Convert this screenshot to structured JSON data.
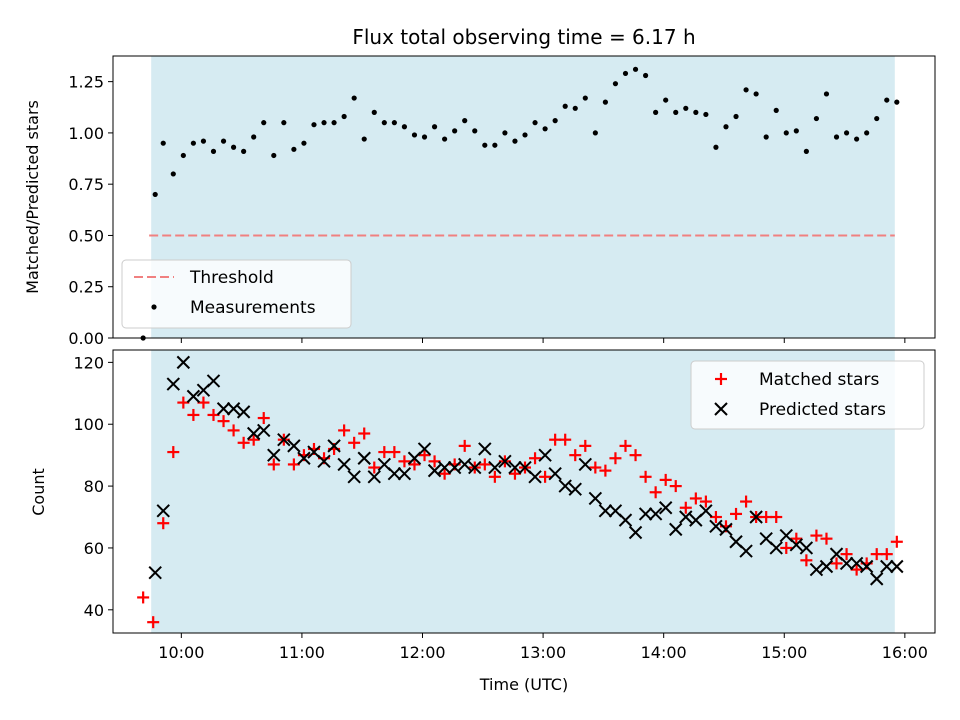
{
  "chart_data": [
    {
      "type": "scatter",
      "title": "Flux total observing time = 6.17 h",
      "xlabel": "",
      "ylabel": "Matched/Predicted stars",
      "xlim": [
        "09:26",
        "16:15"
      ],
      "ylim": [
        0,
        1.375
      ],
      "yticks": [
        0.0,
        0.25,
        0.5,
        0.75,
        1.0,
        1.25
      ],
      "ytick_labels": [
        "0.00",
        "0.25",
        "0.50",
        "0.75",
        "1.00",
        "1.25"
      ],
      "grid": false,
      "legend_position": "lower-left",
      "observing_window": [
        "09:45",
        "15:55"
      ],
      "threshold": {
        "label": "Threshold",
        "value": 0.5,
        "x_range": [
          "09:44",
          "15:55"
        ],
        "color": "#f08080"
      },
      "series": [
        {
          "name": "Measurements",
          "color": "#000000",
          "x": [
            "09:41",
            "09:47",
            "09:51",
            "09:56",
            "10:01",
            "10:06",
            "10:11",
            "10:16",
            "10:21",
            "10:26",
            "10:31",
            "10:36",
            "10:41",
            "10:46",
            "10:51",
            "10:56",
            "11:01",
            "11:06",
            "11:11",
            "11:16",
            "11:21",
            "11:26",
            "11:31",
            "11:36",
            "11:41",
            "11:46",
            "11:51",
            "11:56",
            "12:01",
            "12:06",
            "12:11",
            "12:16",
            "12:21",
            "12:26",
            "12:31",
            "12:36",
            "12:41",
            "12:46",
            "12:51",
            "12:56",
            "13:01",
            "13:06",
            "13:11",
            "13:16",
            "13:21",
            "13:26",
            "13:31",
            "13:36",
            "13:41",
            "13:46",
            "13:51",
            "13:56",
            "14:01",
            "14:06",
            "14:11",
            "14:16",
            "14:21",
            "14:26",
            "14:31",
            "14:36",
            "14:41",
            "14:46",
            "14:51",
            "14:56",
            "15:01",
            "15:06",
            "15:11",
            "15:16",
            "15:21",
            "15:26",
            "15:31",
            "15:36",
            "15:41",
            "15:46",
            "15:51",
            "15:56"
          ],
          "values": [
            0.0,
            0.7,
            0.95,
            0.8,
            0.89,
            0.95,
            0.96,
            0.91,
            0.96,
            0.93,
            0.91,
            0.98,
            1.05,
            0.89,
            1.05,
            0.92,
            0.95,
            1.04,
            1.05,
            1.05,
            1.08,
            1.17,
            0.97,
            1.1,
            1.05,
            1.05,
            1.03,
            0.99,
            0.98,
            1.03,
            0.97,
            1.01,
            1.06,
            1.01,
            0.94,
            0.94,
            1.0,
            0.96,
            0.99,
            1.05,
            1.02,
            1.06,
            1.13,
            1.12,
            1.17,
            1.0,
            1.15,
            1.24,
            1.29,
            1.31,
            1.28,
            1.1,
            1.16,
            1.1,
            1.12,
            1.1,
            1.09,
            0.93,
            1.03,
            1.08,
            1.21,
            1.19,
            0.98,
            1.11,
            1.0,
            1.01,
            0.91,
            1.07,
            1.19,
            0.98,
            1.0,
            0.97,
            1.0,
            1.07,
            1.16,
            1.15
          ]
        }
      ]
    },
    {
      "type": "scatter",
      "title": "",
      "xlabel": "Time (UTC)",
      "ylabel": "Count",
      "xlim": [
        "09:26",
        "16:15"
      ],
      "ylim": [
        32.5,
        124
      ],
      "yticks": [
        40,
        60,
        80,
        100,
        120
      ],
      "ytick_labels": [
        "40",
        "60",
        "80",
        "100",
        "120"
      ],
      "xticks": [
        "10:00",
        "11:00",
        "12:00",
        "13:00",
        "14:00",
        "15:00",
        "16:00"
      ],
      "grid": false,
      "legend_position": "top-right",
      "observing_window": [
        "09:45",
        "15:55"
      ],
      "series": [
        {
          "name": "Matched stars",
          "color": "#ff0000",
          "marker": "plus",
          "x": [
            "09:41",
            "09:46",
            "09:51",
            "09:56",
            "10:01",
            "10:06",
            "10:11",
            "10:16",
            "10:21",
            "10:26",
            "10:31",
            "10:36",
            "10:41",
            "10:46",
            "10:51",
            "10:56",
            "11:01",
            "11:06",
            "11:11",
            "11:16",
            "11:21",
            "11:26",
            "11:31",
            "11:36",
            "11:41",
            "11:46",
            "11:51",
            "11:56",
            "12:01",
            "12:06",
            "12:11",
            "12:16",
            "12:21",
            "12:26",
            "12:31",
            "12:36",
            "12:41",
            "12:46",
            "12:51",
            "12:56",
            "13:01",
            "13:06",
            "13:11",
            "13:16",
            "13:21",
            "13:26",
            "13:31",
            "13:36",
            "13:41",
            "13:46",
            "13:51",
            "13:56",
            "14:01",
            "14:06",
            "14:11",
            "14:16",
            "14:21",
            "14:26",
            "14:31",
            "14:36",
            "14:41",
            "14:46",
            "14:51",
            "14:56",
            "15:01",
            "15:06",
            "15:11",
            "15:16",
            "15:21",
            "15:26",
            "15:31",
            "15:36",
            "15:41",
            "15:46",
            "15:51",
            "15:56"
          ],
          "values": [
            44,
            36,
            68,
            91,
            107,
            103,
            107,
            103,
            101,
            98,
            94,
            95,
            102,
            87,
            95,
            87,
            90,
            92,
            89,
            92,
            98,
            94,
            97,
            86,
            91,
            91,
            88,
            87,
            90,
            88,
            84,
            87,
            93,
            86,
            87,
            83,
            88,
            84,
            86,
            89,
            83,
            95,
            95,
            90,
            93,
            86,
            85,
            89,
            93,
            90,
            83,
            78,
            82,
            80,
            73,
            76,
            75,
            70,
            67,
            71,
            75,
            70,
            70,
            70,
            60,
            63,
            56,
            64,
            63,
            55,
            58,
            53,
            55,
            58,
            58,
            62
          ]
        },
        {
          "name": "Predicted stars",
          "color": "#000000",
          "marker": "x",
          "x": [
            "09:47",
            "09:51",
            "09:56",
            "10:01",
            "10:06",
            "10:11",
            "10:16",
            "10:21",
            "10:26",
            "10:31",
            "10:36",
            "10:41",
            "10:46",
            "10:51",
            "10:56",
            "11:01",
            "11:06",
            "11:11",
            "11:16",
            "11:21",
            "11:26",
            "11:31",
            "11:36",
            "11:41",
            "11:46",
            "11:51",
            "11:56",
            "12:01",
            "12:06",
            "12:11",
            "12:16",
            "12:21",
            "12:26",
            "12:31",
            "12:36",
            "12:41",
            "12:46",
            "12:51",
            "12:56",
            "13:01",
            "13:06",
            "13:11",
            "13:16",
            "13:21",
            "13:26",
            "13:31",
            "13:36",
            "13:41",
            "13:46",
            "13:51",
            "13:56",
            "14:01",
            "14:06",
            "14:11",
            "14:16",
            "14:21",
            "14:26",
            "14:31",
            "14:36",
            "14:41",
            "14:46",
            "14:51",
            "14:56",
            "15:01",
            "15:06",
            "15:11",
            "15:16",
            "15:21",
            "15:26",
            "15:31",
            "15:36",
            "15:41",
            "15:46",
            "15:51",
            "15:56"
          ],
          "values": [
            52,
            72,
            113,
            120,
            109,
            111,
            114,
            105,
            105,
            104,
            97,
            98,
            90,
            95,
            93,
            89,
            91,
            88,
            93,
            87,
            83,
            89,
            83,
            87,
            84,
            84,
            89,
            92,
            85,
            86,
            86,
            87,
            86,
            92,
            86,
            88,
            86,
            86,
            83,
            90,
            84,
            80,
            79,
            87,
            76,
            72,
            72,
            69,
            65,
            71,
            71,
            73,
            66,
            70,
            69,
            72,
            67,
            66,
            62,
            59,
            70,
            63,
            60,
            64,
            61,
            60,
            53,
            54,
            58,
            55,
            55,
            54,
            50,
            54,
            54
          ]
        }
      ]
    }
  ]
}
